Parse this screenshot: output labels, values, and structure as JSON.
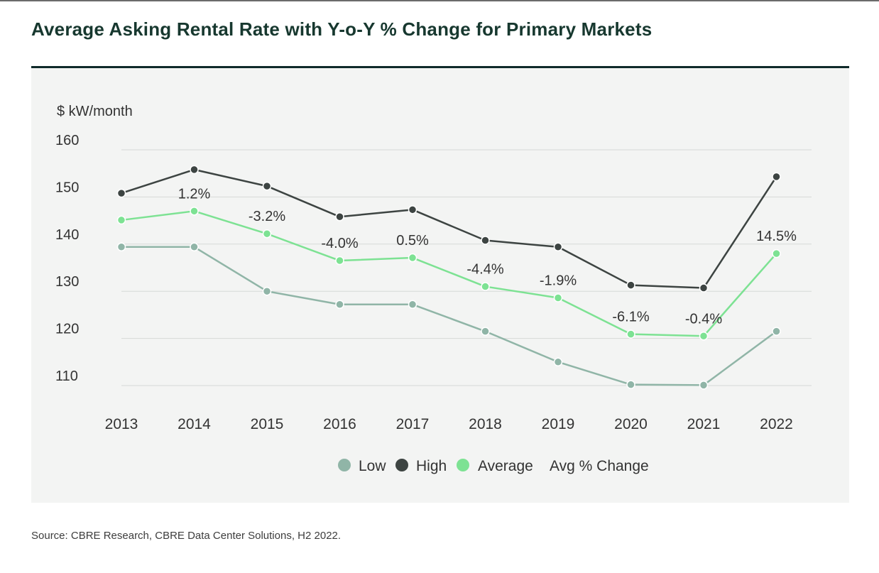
{
  "title": "Average Asking Rental Rate with Y-o-Y % Change for Primary Markets",
  "source": "Source: CBRE Research, CBRE Data Center Solutions, H2 2022.",
  "colors": {
    "low": "#90b5a7",
    "high": "#3d4442",
    "average": "#7de293",
    "grid": "#d6d9d7",
    "text": "#333333"
  },
  "chart_data": {
    "type": "line",
    "ylabel": "$ kW/month",
    "yticks": [
      110,
      120,
      130,
      140,
      150,
      160
    ],
    "ylim": [
      105,
      160
    ],
    "categories": [
      "2013",
      "2014",
      "2015",
      "2016",
      "2017",
      "2018",
      "2019",
      "2020",
      "2021",
      "2022"
    ],
    "series": [
      {
        "name": "Low",
        "key": "low",
        "values": [
          139.4,
          139.4,
          130.0,
          127.2,
          127.2,
          121.5,
          115.0,
          110.2,
          110.1,
          121.5
        ]
      },
      {
        "name": "High",
        "key": "high",
        "values": [
          150.8,
          155.8,
          152.3,
          145.8,
          147.3,
          140.8,
          139.4,
          131.3,
          130.7,
          154.3
        ]
      },
      {
        "name": "Average",
        "key": "average",
        "values": [
          145.1,
          147.0,
          142.2,
          136.5,
          137.1,
          131.0,
          128.6,
          120.9,
          120.5,
          138.0
        ]
      }
    ],
    "avg_pct_change": {
      "name": "Avg % Change",
      "labels": [
        "",
        "1.2%",
        "-3.2%",
        "-4.0%",
        "0.5%",
        "-4.4%",
        "-1.9%",
        "-6.1%",
        "-0.4%",
        "14.5%"
      ]
    },
    "grid": true,
    "legend_position": "bottom-center"
  }
}
